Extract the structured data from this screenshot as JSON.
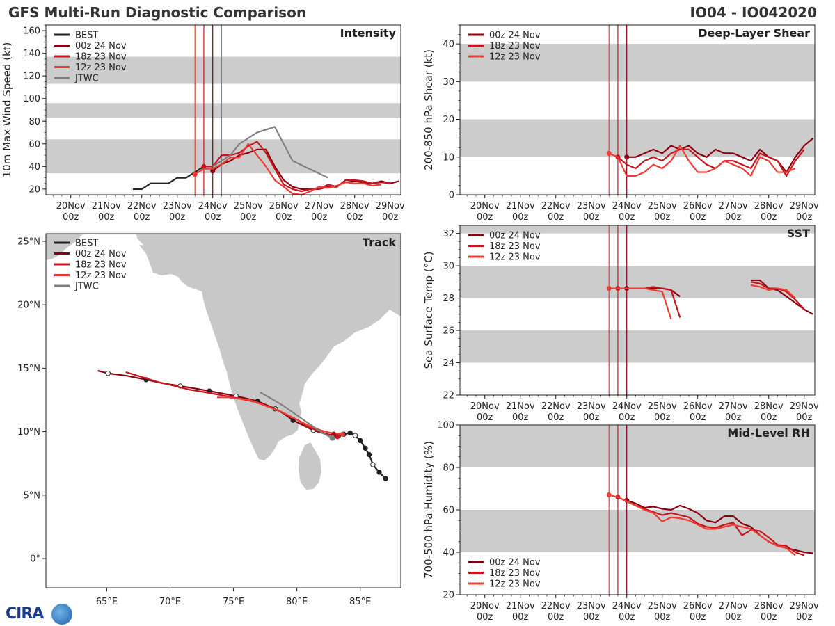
{
  "header": {
    "title_left": "GFS Multi-Run Diagnostic Comparison",
    "title_right": "IO04 - IO042020"
  },
  "logo": {
    "text": "CIRA"
  },
  "colors": {
    "best": "#222222",
    "run_00z_24": "#8b0010",
    "run_18z_23": "#c8141e",
    "run_12z_23": "#ee3c32",
    "jtwc": "#808080",
    "band": "#cccccc",
    "land": "#c8c8c8"
  },
  "time_axis": {
    "labels_top": [
      "20Nov",
      "21Nov",
      "22Nov",
      "23Nov",
      "24Nov",
      "25Nov",
      "26Nov",
      "27Nov",
      "28Nov",
      "29Nov"
    ],
    "labels_bottom": [
      "00z",
      "00z",
      "00z",
      "00z",
      "00z",
      "00z",
      "00z",
      "00z",
      "00z",
      "00z"
    ],
    "day_offsets": [
      0,
      1,
      2,
      3,
      4,
      5,
      6,
      7,
      8,
      9
    ],
    "xlim": [
      -0.7,
      9.3
    ]
  },
  "chart_data": [
    {
      "id": "intensity",
      "type": "line",
      "title": "Intensity",
      "ylabel": "10m Max Wind Speed (kt)",
      "yticks": [
        20,
        40,
        60,
        80,
        100,
        120,
        140,
        160
      ],
      "ylim": [
        15,
        165
      ],
      "bands": [
        [
          34,
          64
        ],
        [
          83,
          96
        ],
        [
          113,
          137
        ]
      ],
      "vlines": [
        {
          "x": 3.5,
          "series": "run_12z_23"
        },
        {
          "x": 3.75,
          "series": "run_18z_23"
        },
        {
          "x": 4.0,
          "series": "run_00z_24"
        },
        {
          "x": 4.25,
          "series": "jtwc"
        }
      ],
      "legend": [
        "BEST",
        "00z 24 Nov",
        "18z 23 Nov",
        "12z 23 Nov",
        "JTWC"
      ],
      "series": [
        {
          "name": "BEST",
          "key": "best",
          "x": [
            1.75,
            2.0,
            2.25,
            2.5,
            2.75,
            3.0,
            3.25,
            3.5,
            3.75,
            4.0,
            4.25
          ],
          "y": [
            20,
            20,
            25,
            25,
            25,
            30,
            30,
            35,
            40,
            40,
            45
          ]
        },
        {
          "name": "00z 24 Nov",
          "key": "run_00z_24",
          "x": [
            4.0,
            4.25,
            4.5,
            4.75,
            5.0,
            5.25,
            5.5,
            5.75,
            6.0,
            6.25,
            6.5,
            6.75,
            7.0,
            7.25,
            7.5,
            7.75,
            8.0,
            8.25,
            8.5,
            8.75,
            9.0,
            9.25
          ],
          "y": [
            36,
            42,
            45,
            50,
            52,
            55,
            55,
            40,
            28,
            22,
            20,
            20,
            20,
            22,
            22,
            28,
            27,
            26,
            25,
            27,
            25,
            27
          ]
        },
        {
          "name": "18z 23 Nov",
          "key": "run_18z_23",
          "x": [
            3.75,
            4.0,
            4.25,
            4.5,
            4.75,
            5.0,
            5.25,
            5.5,
            5.75,
            6.0,
            6.25,
            6.5,
            6.75,
            7.0,
            7.25,
            7.5,
            7.75,
            8.0,
            8.25,
            8.5,
            8.75,
            9.0
          ],
          "y": [
            40,
            40,
            50,
            50,
            52,
            58,
            62,
            52,
            38,
            24,
            20,
            18,
            20,
            20,
            24,
            22,
            28,
            28,
            27,
            25,
            26,
            25
          ]
        },
        {
          "name": "12z 23 Nov",
          "key": "run_12z_23",
          "x": [
            3.5,
            3.75,
            4.0,
            4.25,
            4.5,
            4.75,
            5.0,
            5.25,
            5.5,
            5.75,
            6.0,
            6.25,
            6.5,
            6.75,
            7.0,
            7.25,
            7.5,
            7.75,
            8.0,
            8.25,
            8.5,
            8.75
          ],
          "y": [
            33,
            38,
            38,
            42,
            48,
            48,
            60,
            50,
            40,
            28,
            22,
            16,
            15,
            18,
            22,
            21,
            23,
            26,
            25,
            25,
            23,
            24
          ]
        },
        {
          "name": "JTWC",
          "key": "jtwc",
          "x": [
            4.0,
            4.25,
            4.5,
            4.75,
            5.25,
            5.75,
            6.25,
            7.25
          ],
          "y": [
            40,
            45,
            50,
            60,
            70,
            75,
            45,
            30
          ]
        }
      ]
    },
    {
      "id": "shear",
      "type": "line",
      "title": "Deep-Layer Shear",
      "ylabel": "200-850 hPa Shear (kt)",
      "yticks": [
        0,
        10,
        20,
        30,
        40
      ],
      "ylim": [
        0,
        45
      ],
      "bands": [
        [
          10,
          20
        ],
        [
          30,
          40
        ]
      ],
      "vlines": [
        {
          "x": 3.5,
          "series": "run_12z_23"
        },
        {
          "x": 3.75,
          "series": "run_18z_23"
        },
        {
          "x": 4.0,
          "series": "run_00z_24"
        }
      ],
      "legend": [
        "00z 24 Nov",
        "18z 23 Nov",
        "12z 23 Nov"
      ],
      "series": [
        {
          "name": "00z 24 Nov",
          "key": "run_00z_24",
          "x": [
            4.0,
            4.25,
            4.5,
            4.75,
            5.0,
            5.25,
            5.5,
            5.75,
            6.0,
            6.25,
            6.5,
            6.75,
            7.0,
            7.25,
            7.5,
            7.75,
            8.0,
            8.25,
            8.5,
            8.75,
            9.0,
            9.25
          ],
          "y": [
            10,
            10,
            11,
            12,
            11,
            13,
            12,
            13,
            11,
            10,
            12,
            11,
            11,
            10,
            9,
            12,
            10,
            9,
            6,
            10,
            13,
            15
          ]
        },
        {
          "name": "18z 23 Nov",
          "key": "run_18z_23",
          "x": [
            3.75,
            4.0,
            4.25,
            4.5,
            4.75,
            5.0,
            5.25,
            5.5,
            5.75,
            6.0,
            6.25,
            6.5,
            6.75,
            7.0,
            7.25,
            7.5,
            7.75,
            8.0,
            8.25,
            8.5,
            8.75,
            9.0
          ],
          "y": [
            10,
            8,
            7,
            9,
            10,
            9,
            11,
            12,
            12,
            10,
            8,
            7,
            9,
            9,
            8,
            7,
            11,
            10,
            9,
            5,
            9,
            12
          ]
        },
        {
          "name": "12z 23 Nov",
          "key": "run_12z_23",
          "x": [
            3.5,
            3.75,
            4.0,
            4.25,
            4.5,
            4.75,
            5.0,
            5.25,
            5.5,
            5.75,
            6.0,
            6.25,
            6.5,
            6.75,
            7.0,
            7.25,
            7.5,
            7.75,
            8.0,
            8.25,
            8.5,
            8.75
          ],
          "y": [
            11,
            10,
            5,
            5,
            6,
            8,
            7,
            9,
            13,
            9,
            6,
            6,
            7,
            9,
            8,
            7,
            5,
            10,
            9,
            6,
            6,
            7
          ]
        }
      ]
    },
    {
      "id": "sst",
      "type": "line",
      "title": "SST",
      "ylabel": "Sea Surface Temp (°C)",
      "yticks": [
        22,
        24,
        26,
        28,
        30,
        32
      ],
      "ylim": [
        22,
        32.5
      ],
      "bands": [
        [
          24,
          26
        ],
        [
          28,
          30
        ],
        [
          32,
          34
        ]
      ],
      "vlines": [
        {
          "x": 3.5,
          "series": "run_12z_23"
        },
        {
          "x": 3.75,
          "series": "run_18z_23"
        },
        {
          "x": 4.0,
          "series": "run_00z_24"
        }
      ],
      "legend": [
        "00z 24 Nov",
        "18z 23 Nov",
        "12z 23 Nov"
      ],
      "series": [
        {
          "name": "00z 24 Nov",
          "key": "run_00z_24",
          "segments": [
            {
              "x": [
                4.0,
                4.25,
                4.5,
                4.75,
                5.0,
                5.25,
                5.5
              ],
              "y": [
                28.6,
                28.6,
                28.6,
                28.6,
                28.6,
                28.5,
                28.1
              ]
            },
            {
              "x": [
                7.5,
                7.75,
                8.0,
                8.25,
                8.5,
                8.75,
                9.0,
                9.25
              ],
              "y": [
                29.1,
                29.1,
                28.6,
                28.5,
                28.1,
                27.7,
                27.3,
                27.0
              ]
            }
          ]
        },
        {
          "name": "18z 23 Nov",
          "key": "run_18z_23",
          "segments": [
            {
              "x": [
                3.75,
                4.0,
                4.25,
                4.5,
                4.75,
                5.0,
                5.25,
                5.5
              ],
              "y": [
                28.6,
                28.6,
                28.6,
                28.6,
                28.7,
                28.6,
                28.5,
                26.8
              ]
            },
            {
              "x": [
                7.5,
                7.75,
                8.0,
                8.25,
                8.5,
                8.75,
                9.0
              ],
              "y": [
                29.0,
                28.9,
                28.6,
                28.6,
                28.4,
                27.9,
                27.3
              ]
            }
          ]
        },
        {
          "name": "12z 23 Nov",
          "key": "run_12z_23",
          "segments": [
            {
              "x": [
                3.5,
                3.75,
                4.0,
                4.25,
                4.5,
                4.75,
                5.0,
                5.25
              ],
              "y": [
                28.6,
                28.6,
                28.6,
                28.6,
                28.6,
                28.5,
                28.4,
                26.7
              ]
            },
            {
              "x": [
                7.5,
                7.75,
                8.0,
                8.25,
                8.5,
                8.75
              ],
              "y": [
                28.8,
                28.7,
                28.5,
                28.6,
                28.5,
                28.0
              ]
            }
          ]
        }
      ]
    },
    {
      "id": "rh",
      "type": "line",
      "title": "Mid-Level RH",
      "ylabel": "700-500 hPa Humidity (%)",
      "yticks": [
        20,
        40,
        60,
        80,
        100
      ],
      "ylim": [
        20,
        100
      ],
      "bands": [
        [
          40,
          60
        ],
        [
          80,
          100
        ]
      ],
      "vlines": [
        {
          "x": 3.5,
          "series": "run_12z_23"
        },
        {
          "x": 3.75,
          "series": "run_18z_23"
        },
        {
          "x": 4.0,
          "series": "run_00z_24"
        }
      ],
      "legend": [
        "00z 24 Nov",
        "18z 23 Nov",
        "12z 23 Nov"
      ],
      "series": [
        {
          "name": "00z 24 Nov",
          "key": "run_00z_24",
          "x": [
            4.0,
            4.25,
            4.5,
            4.75,
            5.0,
            5.25,
            5.5,
            5.75,
            6.0,
            6.25,
            6.5,
            6.75,
            7.0,
            7.25,
            7.5,
            7.75,
            8.0,
            8.25,
            8.5,
            8.75,
            9.0,
            9.25
          ],
          "y": [
            64.5,
            63,
            61,
            61.5,
            60.5,
            60,
            62,
            60.5,
            58.5,
            55,
            54,
            57,
            57,
            53.5,
            52,
            48,
            45,
            43,
            42,
            41,
            40,
            39.5
          ]
        },
        {
          "name": "18z 23 Nov",
          "key": "run_18z_23",
          "x": [
            3.75,
            4.0,
            4.25,
            4.5,
            4.75,
            5.0,
            5.25,
            5.5,
            5.75,
            6.0,
            6.25,
            6.5,
            6.75,
            7.0,
            7.25,
            7.5,
            7.75,
            8.0,
            8.25,
            8.5,
            8.75,
            9.0
          ],
          "y": [
            66,
            64,
            62,
            60.5,
            59,
            57.5,
            58.5,
            57.5,
            56.5,
            53.5,
            52,
            51.5,
            53,
            54,
            48,
            50.5,
            50,
            47,
            43.5,
            43,
            40,
            38.5
          ]
        },
        {
          "name": "12z 23 Nov",
          "key": "run_12z_23",
          "x": [
            3.5,
            3.75,
            4.0,
            4.25,
            4.5,
            4.75,
            5.0,
            5.25,
            5.5,
            5.75,
            6.0,
            6.25,
            6.5,
            6.75,
            7.0,
            7.25,
            7.5,
            7.75,
            8.0,
            8.25,
            8.5,
            8.75
          ],
          "y": [
            67,
            66,
            64,
            62,
            60,
            58.5,
            54.5,
            56.5,
            56,
            55,
            53,
            51,
            51,
            52,
            53,
            52,
            51,
            48,
            45,
            43,
            42,
            38.5
          ]
        }
      ]
    },
    {
      "id": "track",
      "type": "scatter",
      "title": "Track",
      "xlabel": "",
      "ylabel": "",
      "xlim": [
        60.2,
        88.2
      ],
      "ylim": [
        -2.3,
        25.6
      ],
      "xticks": [
        65,
        70,
        75,
        80,
        85
      ],
      "xtick_labels": [
        "65°E",
        "70°E",
        "75°E",
        "80°E",
        "85°E"
      ],
      "yticks": [
        0,
        5,
        10,
        15,
        20,
        25
      ],
      "ytick_labels": [
        "0°",
        "5°N",
        "10°N",
        "15°N",
        "20°N",
        "25°N"
      ],
      "legend": [
        "BEST",
        "00z 24 Nov",
        "18z 23 Nov",
        "12z 23 Nov",
        "JTWC"
      ],
      "series": [
        {
          "name": "BEST",
          "key": "best",
          "lon": [
            87.0,
            86.5,
            86.0,
            85.7,
            85.4,
            85.0,
            84.6,
            84.2,
            83.7,
            83.3,
            82.9
          ],
          "lat": [
            6.3,
            6.8,
            7.4,
            8.2,
            8.7,
            9.3,
            9.7,
            9.9,
            9.8,
            9.7,
            9.8
          ]
        },
        {
          "name": "00z 24 Nov",
          "key": "run_00z_24",
          "lon": [
            82.9,
            82.0,
            81.3,
            80.5,
            79.7,
            79.0,
            78.3,
            77.6,
            76.9,
            76.1,
            75.2,
            74.2,
            73.1,
            72.0,
            70.8,
            69.5,
            68.1,
            66.6,
            65.1,
            64.3
          ],
          "lat": [
            9.7,
            9.9,
            10.1,
            10.5,
            10.9,
            11.4,
            11.8,
            12.1,
            12.4,
            12.6,
            12.8,
            13.0,
            13.2,
            13.4,
            13.6,
            13.8,
            14.1,
            14.4,
            14.6,
            14.8
          ]
        },
        {
          "name": "18z 23 Nov",
          "key": "run_18z_23",
          "lon": [
            83.2,
            82.4,
            81.6,
            80.8,
            80.1,
            79.3,
            78.5,
            77.7,
            76.9,
            76.0,
            75.0,
            73.9,
            72.8,
            71.6,
            70.4,
            69.1,
            67.8,
            66.5
          ],
          "lat": [
            9.6,
            9.8,
            10.1,
            10.4,
            10.9,
            11.3,
            11.7,
            12.0,
            12.3,
            12.5,
            12.7,
            12.9,
            13.1,
            13.3,
            13.6,
            13.9,
            14.3,
            14.7
          ]
        },
        {
          "name": "12z 23 Nov",
          "key": "run_12z_23",
          "lon": [
            83.6,
            82.7,
            81.9,
            81.1,
            80.3,
            79.5,
            78.7,
            77.9,
            77.1,
            76.3,
            75.4,
            74.6,
            73.7
          ],
          "lat": [
            9.8,
            9.9,
            10.1,
            10.4,
            10.8,
            11.2,
            11.6,
            11.9,
            12.2,
            12.5,
            12.6,
            12.7,
            12.7
          ]
        },
        {
          "name": "JTWC",
          "key": "jtwc",
          "lon": [
            82.8,
            82.0,
            81.0,
            80.0,
            79.0,
            78.0,
            77.1
          ],
          "lat": [
            9.5,
            9.9,
            10.6,
            11.3,
            12.0,
            12.6,
            13.1
          ]
        }
      ]
    }
  ]
}
